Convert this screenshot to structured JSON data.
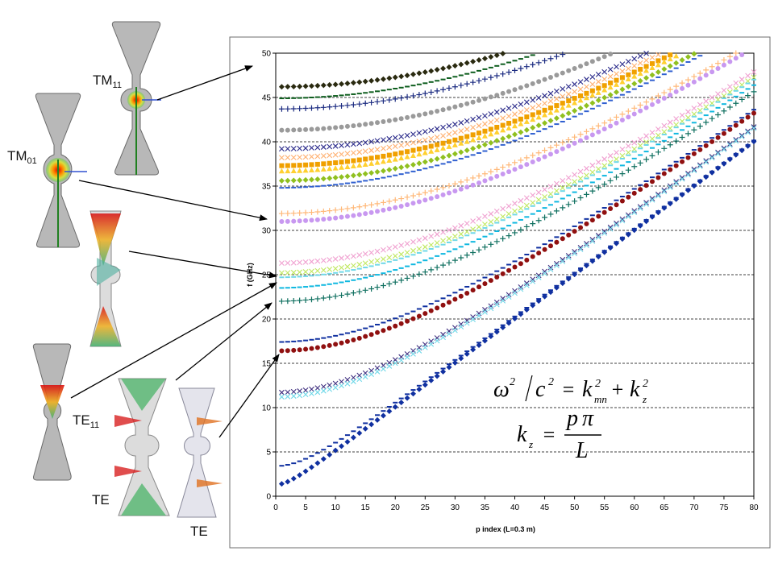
{
  "mode_labels": {
    "tm11": {
      "main": "TM",
      "sub": "11"
    },
    "tm01": {
      "main": "TM",
      "sub": "01"
    },
    "te11": {
      "main": "TE",
      "sub": "11"
    },
    "te_a": {
      "main": "TE"
    },
    "te_b": {
      "main": "TE"
    }
  },
  "equations": {
    "dispersion": {
      "omega": "ω",
      "c": "c",
      "sq": "2",
      "eq": "=",
      "kmn": "k",
      "mn": "mn",
      "plus": "+",
      "kz": "k",
      "z": "z"
    },
    "kz_def": {
      "k": "k",
      "z": "z",
      "eq": "=",
      "p": "p",
      "pi": "π",
      "L": "L"
    }
  },
  "chart_data": {
    "type": "scatter",
    "xlabel": "p index (L=0.3 m)",
    "ylabel": "f (GHz)",
    "xlim": [
      0,
      80
    ],
    "ylim": [
      0,
      50
    ],
    "x_ticks": [
      0,
      5,
      10,
      15,
      20,
      25,
      30,
      35,
      40,
      45,
      50,
      55,
      60,
      65,
      70,
      75,
      80
    ],
    "y_ticks": [
      0,
      5,
      10,
      15,
      20,
      25,
      30,
      35,
      40,
      45,
      50
    ],
    "grid": "horizontal dashed",
    "series": [
      {
        "f0": 46.2,
        "color": "#2a2a10",
        "marker": "diamond"
      },
      {
        "f0": 44.9,
        "color": "#0e5e1e",
        "marker": "dash"
      },
      {
        "f0": 43.7,
        "color": "#1a2a80",
        "marker": "plus"
      },
      {
        "f0": 41.3,
        "color": "#9a9a9a",
        "marker": "circle"
      },
      {
        "f0": 39.2,
        "color": "#2a2a8a",
        "marker": "cross"
      },
      {
        "f0": 38.2,
        "color": "#ffb070",
        "marker": "cross"
      },
      {
        "f0": 37.3,
        "color": "#f0a000",
        "marker": "square"
      },
      {
        "f0": 36.7,
        "color": "#ffd030",
        "marker": "triangle"
      },
      {
        "f0": 35.6,
        "color": "#90c020",
        "marker": "diamond"
      },
      {
        "f0": 34.8,
        "color": "#3060d0",
        "marker": "dash"
      },
      {
        "f0": 31.9,
        "color": "#ffb878",
        "marker": "plus"
      },
      {
        "f0": 31.0,
        "color": "#c898f0",
        "marker": "circle"
      },
      {
        "f0": 26.3,
        "color": "#f0a0d0",
        "marker": "cross"
      },
      {
        "f0": 25.2,
        "color": "#c0e860",
        "marker": "cross"
      },
      {
        "f0": 24.7,
        "color": "#70d8e8",
        "marker": "dash"
      },
      {
        "f0": 23.5,
        "color": "#10b8e0",
        "marker": "dash"
      },
      {
        "f0": 22.0,
        "color": "#107060",
        "marker": "plus"
      },
      {
        "f0": 17.4,
        "color": "#1030a0",
        "marker": "dash"
      },
      {
        "f0": 16.4,
        "color": "#901010",
        "marker": "circle"
      },
      {
        "f0": 11.7,
        "color": "#403080",
        "marker": "cross"
      },
      {
        "f0": 11.2,
        "color": "#70d8e8",
        "marker": "cross"
      },
      {
        "f0": 3.4,
        "color": "#1030a0",
        "marker": "dash"
      },
      {
        "f0": 1.3,
        "color": "#1030a0",
        "marker": "diamond"
      }
    ],
    "colors": {
      "plot_bg": "#ffffff",
      "frame": "#6e6e6e",
      "grid": "#000000",
      "arrow": "#000000"
    }
  }
}
